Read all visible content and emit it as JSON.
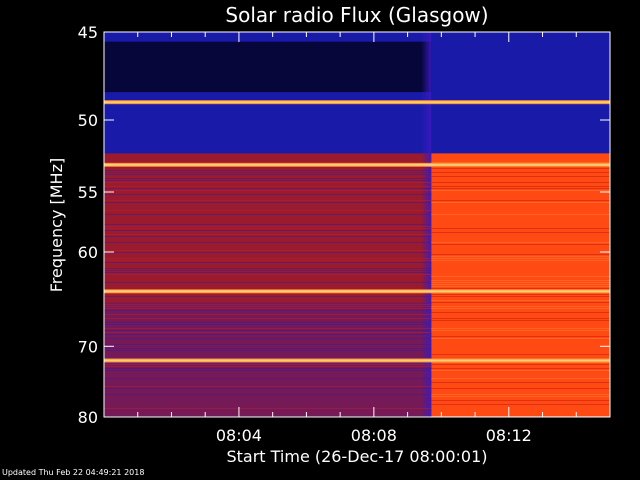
{
  "chart_data": {
    "type": "heatmap",
    "title": "Solar radio Flux (Glasgow)",
    "xlabel": "Start Time (26-Dec-17 08:00:01)",
    "ylabel": "Frequency [MHz]",
    "x_tick_labels": [
      "08:04",
      "08:08",
      "08:12"
    ],
    "x_tick_minutes": [
      4,
      8,
      12
    ],
    "xlim_minutes": [
      0,
      15
    ],
    "y_tick_labels": [
      "45",
      "50",
      "55",
      "60",
      "70",
      "80"
    ],
    "y_tick_values": [
      45,
      50,
      55,
      60,
      70,
      80
    ],
    "ylim": [
      45,
      80
    ],
    "y_scale": "reciprocal",
    "step_time_minutes": 9.7,
    "bright_lines_mhz": [
      48.9,
      53.0,
      63.8,
      71.8
    ],
    "colors": {
      "background": "#000000",
      "low": "#1a1aa8",
      "mid": "#9a1a2e",
      "high": "#ff4a14",
      "line": "#ffd070"
    }
  },
  "footer": {
    "updated": "Updated Thu Feb 22 04:49:21 2018"
  }
}
